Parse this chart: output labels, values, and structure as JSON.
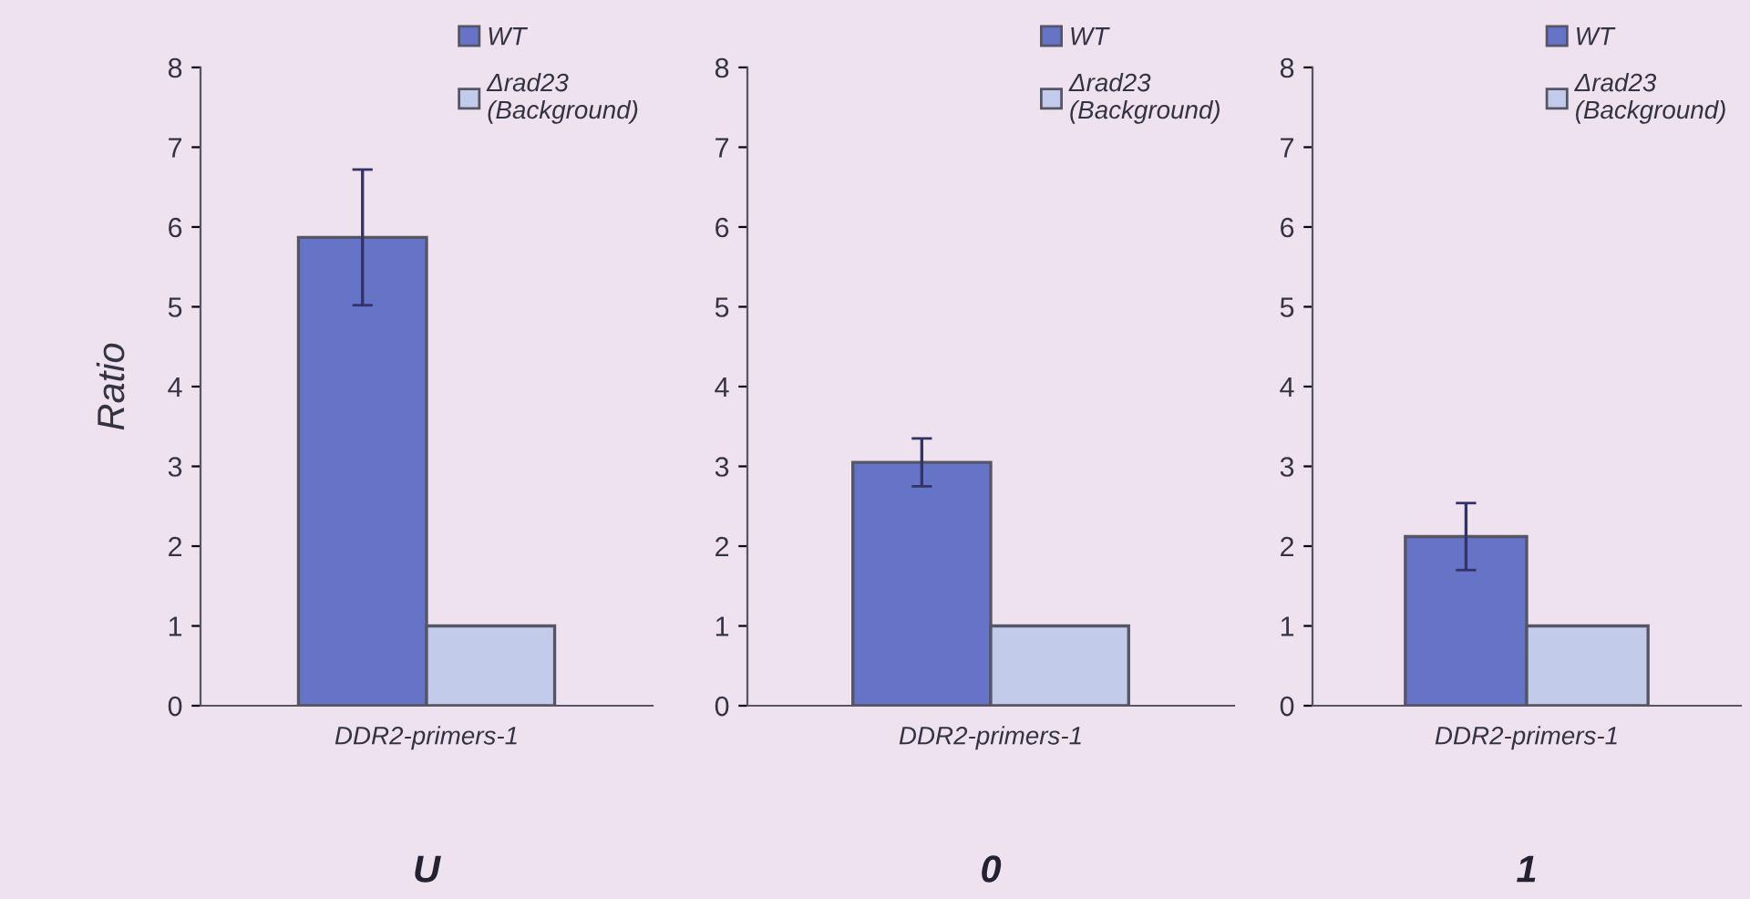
{
  "chart_data": [
    {
      "type": "bar",
      "title": "U",
      "ylabel": "Ratio",
      "categories": [
        "DDR2-primers-1"
      ],
      "ylim": [
        0,
        8
      ],
      "yticks": [
        0,
        1,
        2,
        3,
        4,
        5,
        6,
        7,
        8
      ],
      "legend": "top right",
      "series": [
        {
          "name": "WT",
          "color": "#6674c8",
          "values": [
            5.87
          ],
          "errors": [
            0.85
          ]
        },
        {
          "name": "Δrad23\n(Background)",
          "color": "#c3cbea",
          "values": [
            1
          ]
        }
      ]
    },
    {
      "type": "bar",
      "title": "0",
      "categories": [
        "DDR2-primers-1"
      ],
      "ylim": [
        0,
        8
      ],
      "yticks": [
        0,
        1,
        2,
        3,
        4,
        5,
        6,
        7,
        8
      ],
      "legend": "top right",
      "series": [
        {
          "name": "WT",
          "color": "#6674c8",
          "values": [
            3.05
          ],
          "errors": [
            0.3
          ]
        },
        {
          "name": "Δrad23\n(Background)",
          "color": "#c3cbea",
          "values": [
            1
          ]
        }
      ]
    },
    {
      "type": "bar",
      "title": "1",
      "categories": [
        "DDR2-primers-1"
      ],
      "ylim": [
        0,
        8
      ],
      "yticks": [
        0,
        1,
        2,
        3,
        4,
        5,
        6,
        7,
        8
      ],
      "legend": "top right",
      "series": [
        {
          "name": "WT",
          "color": "#6674c8",
          "values": [
            2.12
          ],
          "errors": [
            0.42
          ]
        },
        {
          "name": "Δrad23\n(Background)",
          "color": "#c3cbea",
          "values": [
            1
          ]
        }
      ]
    }
  ]
}
